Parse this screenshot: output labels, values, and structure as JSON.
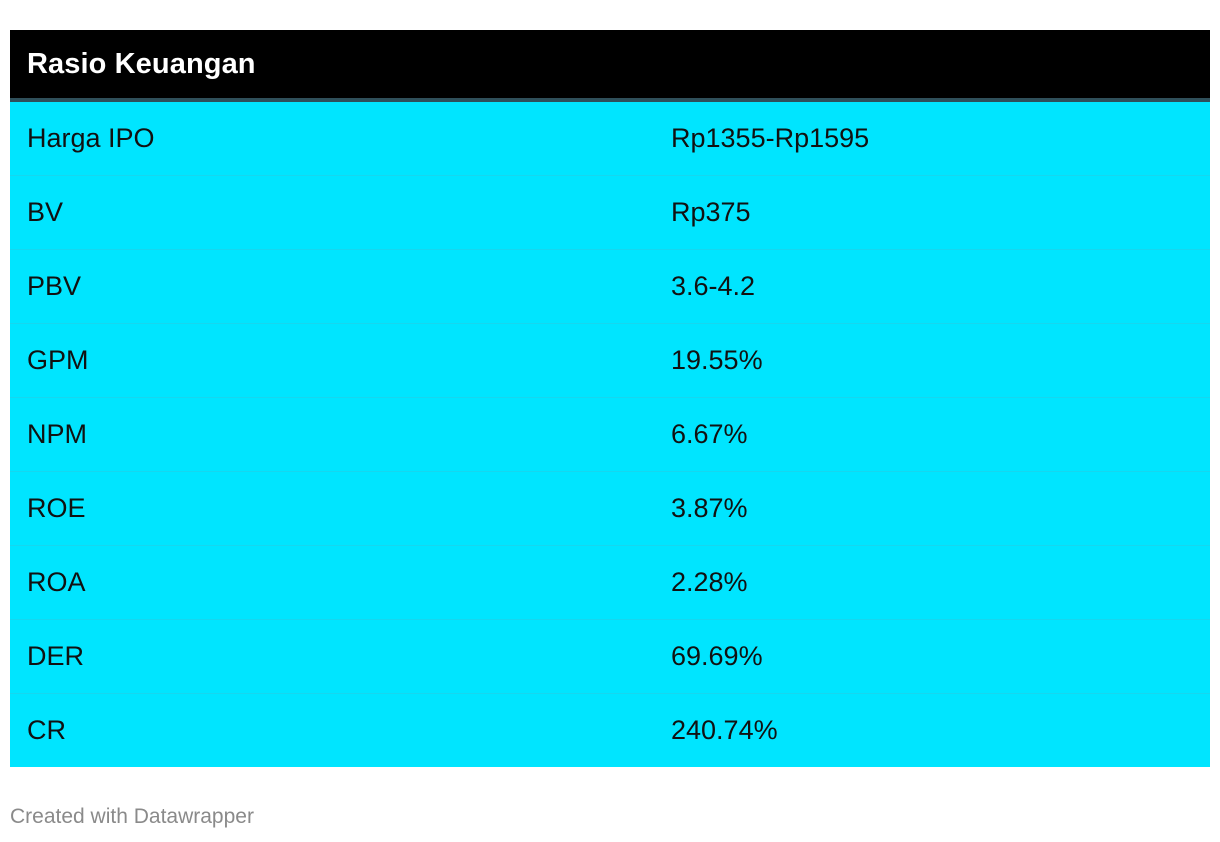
{
  "chart_data": {
    "type": "table",
    "title": "Rasio Keuangan",
    "columns": [
      "",
      ""
    ],
    "rows": [
      {
        "label": "Harga IPO",
        "value": "Rp1355-Rp1595"
      },
      {
        "label": "BV",
        "value": "Rp375"
      },
      {
        "label": "PBV",
        "value": "3.6-4.2"
      },
      {
        "label": "GPM",
        "value": "19.55%"
      },
      {
        "label": "NPM",
        "value": "6.67%"
      },
      {
        "label": "ROE",
        "value": "3.87%"
      },
      {
        "label": "ROA",
        "value": "2.28%"
      },
      {
        "label": "DER",
        "value": "69.69%"
      },
      {
        "label": "CR",
        "value": "240.74%"
      }
    ]
  },
  "colors": {
    "header_bg": "#000000",
    "body_bg": "#00e5ff",
    "footer_text": "#8a8a8a"
  },
  "footer": {
    "text": "Created with Datawrapper"
  }
}
